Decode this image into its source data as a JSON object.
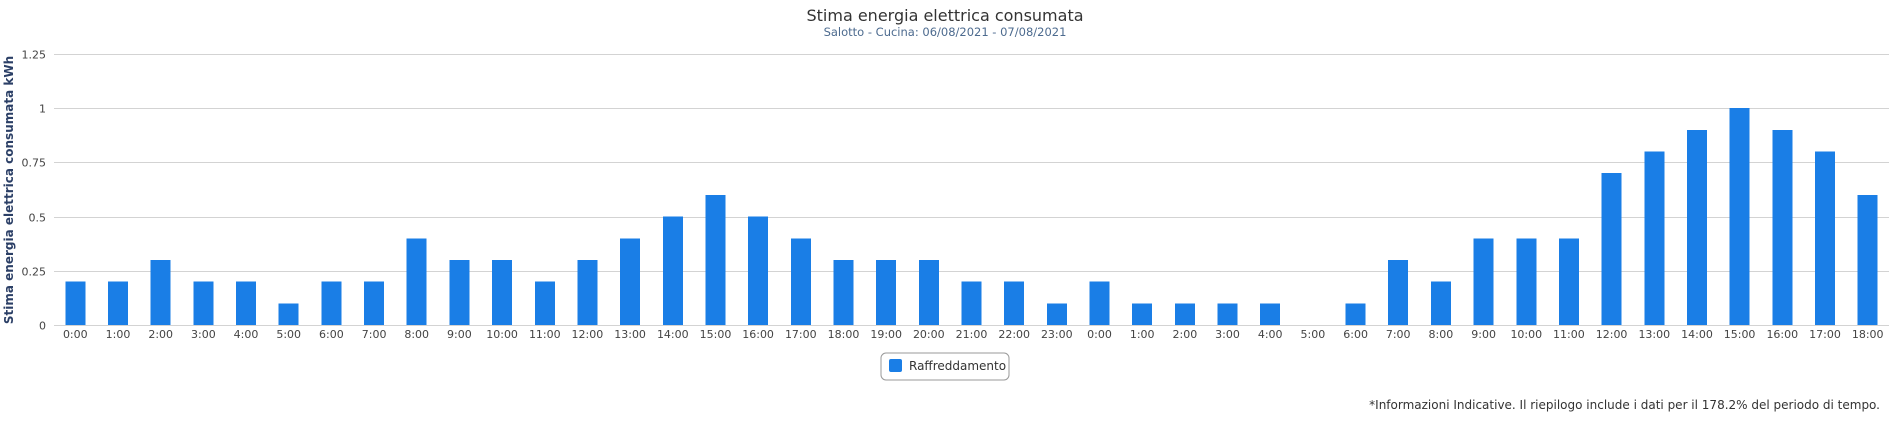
{
  "chart_data": {
    "type": "bar",
    "title": "Stima energia elettrica consumata",
    "subtitle": "Salotto - Cucina: 06/08/2021 - 07/08/2021",
    "xlabel": "",
    "ylabel": "Stima energia elettrica consumata kWh",
    "ylim": [
      0,
      1.25
    ],
    "y_ticks": [
      "0",
      "0.25",
      "0.5",
      "0.75",
      "1",
      "1.25"
    ],
    "grid": true,
    "legend_position": "bottom-center",
    "categories": [
      "0:00",
      "1:00",
      "2:00",
      "3:00",
      "4:00",
      "5:00",
      "6:00",
      "7:00",
      "8:00",
      "9:00",
      "10:00",
      "11:00",
      "12:00",
      "13:00",
      "14:00",
      "15:00",
      "16:00",
      "17:00",
      "18:00",
      "19:00",
      "20:00",
      "21:00",
      "22:00",
      "23:00",
      "0:00",
      "1:00",
      "2:00",
      "3:00",
      "4:00",
      "5:00",
      "6:00",
      "7:00",
      "8:00",
      "9:00",
      "10:00",
      "11:00",
      "12:00",
      "13:00",
      "14:00",
      "15:00",
      "16:00",
      "17:00",
      "18:00"
    ],
    "series": [
      {
        "name": "Raffreddamento",
        "color": "#1a7ee6",
        "values": [
          0.2,
          0.2,
          0.3,
          0.2,
          0.2,
          0.1,
          0.2,
          0.2,
          0.4,
          0.3,
          0.3,
          0.2,
          0.3,
          0.4,
          0.5,
          0.6,
          0.5,
          0.4,
          0.3,
          0.3,
          0.3,
          0.2,
          0.2,
          0.1,
          0.2,
          0.1,
          0.1,
          0.1,
          0.1,
          0,
          0.1,
          0.3,
          0.2,
          0.4,
          0.4,
          0.4,
          0.7,
          0.8,
          0.9,
          1.0,
          0.9,
          0.8,
          0.6
        ]
      }
    ]
  },
  "footnote": "*Informazioni Indicative. Il riepilogo include i dati per il 178.2% del periodo di tempo."
}
